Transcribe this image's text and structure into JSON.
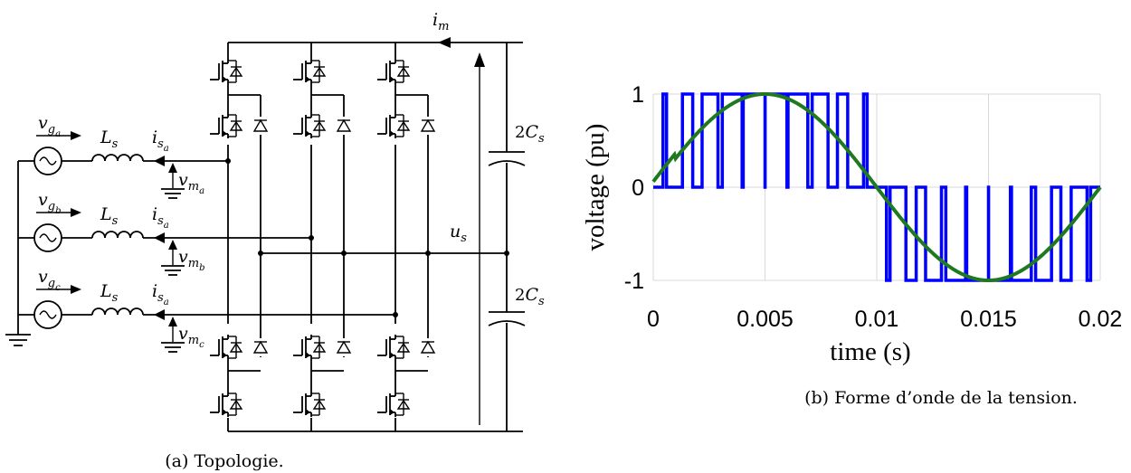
{
  "circuit": {
    "current_main": {
      "sym": "i",
      "sub": "m"
    },
    "voltage_dc": {
      "sym": "u",
      "sub": "s"
    },
    "capacitor_top": {
      "coef": "2",
      "sym": "C",
      "sub": "s"
    },
    "capacitor_bottom": {
      "coef": "2",
      "sym": "C",
      "sub": "s"
    },
    "phases": [
      {
        "vg_sym": "v",
        "vg_sub": "g",
        "vg_ssub": "a",
        "L_sym": "L",
        "L_sub": "s",
        "i_sym": "i",
        "i_sub": "s",
        "i_ssub": "a",
        "vm_sym": "v",
        "vm_sub": "m",
        "vm_ssub": "a"
      },
      {
        "vg_sym": "v",
        "vg_sub": "g",
        "vg_ssub": "b",
        "L_sym": "L",
        "L_sub": "s",
        "i_sym": "i",
        "i_sub": "s",
        "i_ssub": "a",
        "vm_sym": "v",
        "vm_sub": "m",
        "vm_ssub": "b"
      },
      {
        "vg_sym": "v",
        "vg_sub": "g",
        "vg_ssub": "c",
        "L_sym": "L",
        "L_sub": "s",
        "i_sym": "i",
        "i_sub": "s",
        "i_ssub": "a",
        "vm_sym": "v",
        "vm_sub": "m",
        "vm_ssub": "c"
      }
    ]
  },
  "caption_a": "(a) Topologie.",
  "caption_b": "(b) Forme d’onde de la tension.",
  "plot": {
    "xlabel": "time (s)",
    "ylabel": "voltage (pu)",
    "xlim": [
      0,
      0.02
    ],
    "ylim": [
      -1,
      1
    ],
    "x_ticks": [
      "0",
      "0.005",
      "0.01",
      "0.015",
      "0.02"
    ],
    "y_ticks": [
      "1",
      "0",
      "-1"
    ],
    "pwm_color": "#0000ff",
    "sine_color": "#1f7a1f",
    "grid": true
  },
  "chart_data": {
    "type": "line",
    "xlabel": "time (s)",
    "ylabel": "voltage (pu)",
    "xlim": [
      0,
      0.02
    ],
    "ylim": [
      -1,
      1
    ],
    "series": [
      {
        "type": "step",
        "color": "#0000ff",
        "levels": [
          0,
          1,
          -1
        ],
        "switching_frequency_hz": 1000
      },
      {
        "type": "sine",
        "color": "#1f7a1f",
        "amplitude": 1,
        "frequency_hz": 50,
        "x_range": [
          0,
          0.02
        ]
      }
    ]
  }
}
